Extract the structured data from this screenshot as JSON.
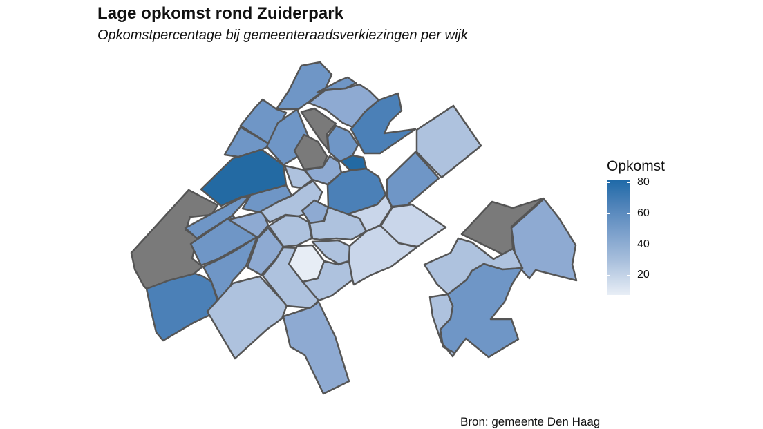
{
  "title": "Lage opkomst rond Zuiderpark",
  "subtitle": "Opkomstpercentage bij gemeenteraadsverkiezingen per wijk",
  "legend": {
    "title": "Opkomst",
    "labels": [
      "80",
      "60",
      "40",
      "20"
    ]
  },
  "source": "Bron: gemeente Den Haag",
  "colors": {
    "no_data": "#7a7a7a",
    "very_high": "#236aa3",
    "high": "#4b80b7",
    "mid": "#6f96c6",
    "mid_low": "#8eaad2",
    "low": "#aec2de",
    "very_low": "#c9d6ea",
    "minimal": "#e7edf5",
    "outline": "#555555"
  }
}
